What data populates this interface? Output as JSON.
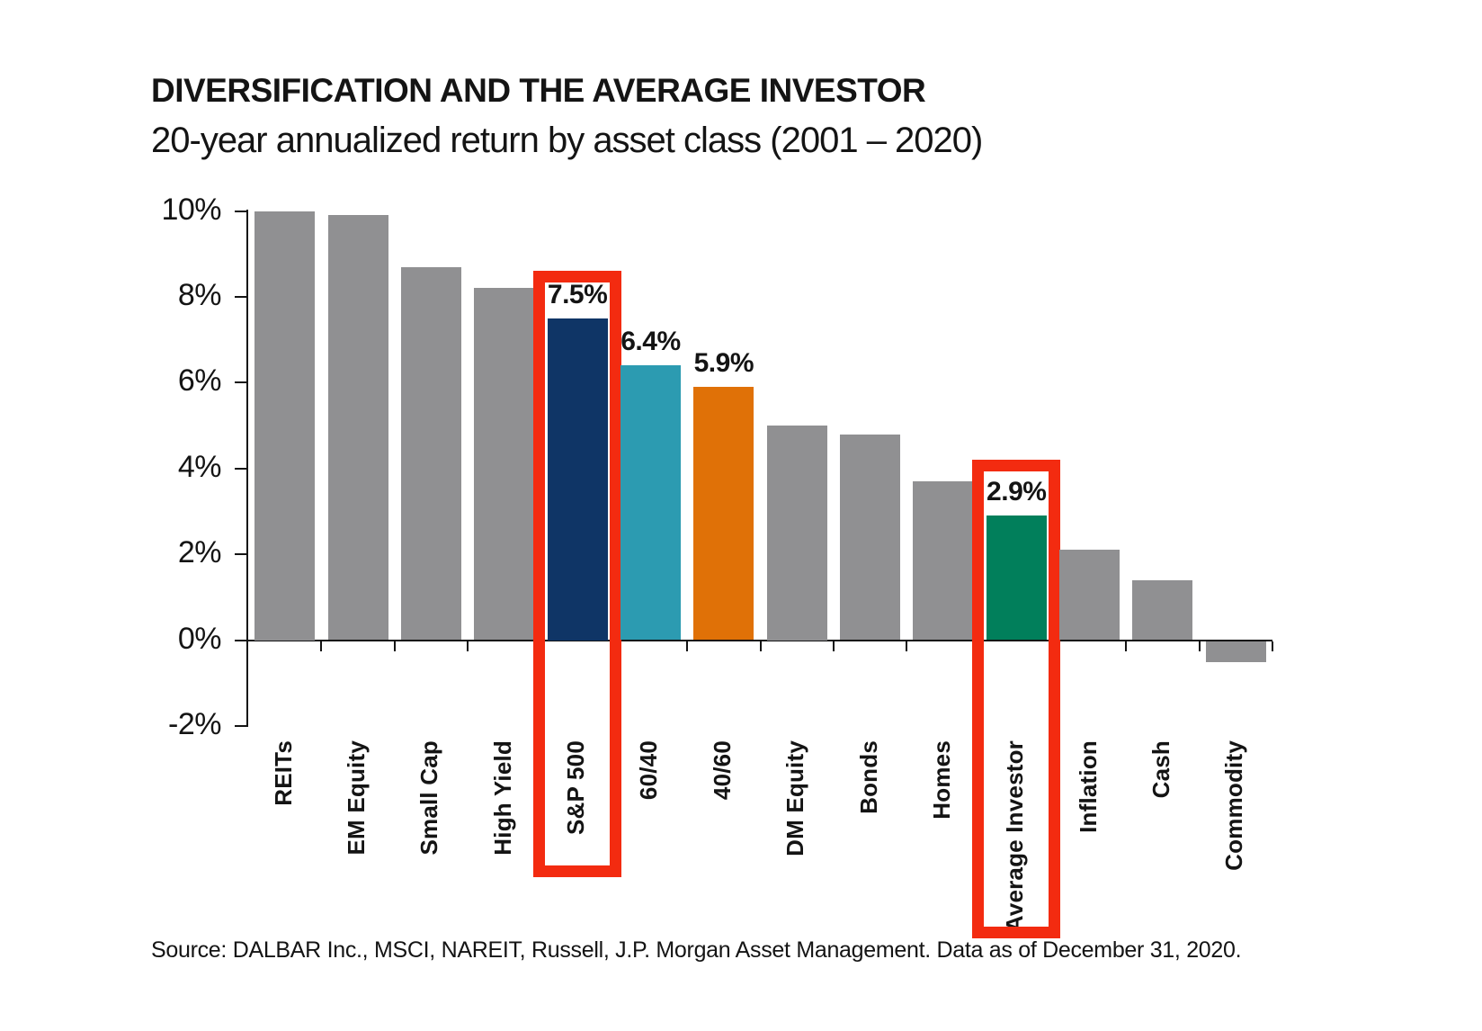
{
  "header": {
    "title": "DIVERSIFICATION AND THE AVERAGE INVESTOR",
    "subtitle": "20-year annualized return by asset class (2001 – 2020)"
  },
  "source_note": "Source: DALBAR Inc., MSCI, NAREIT, Russell, J.P. Morgan Asset Management. Data as of December 31, 2020.",
  "colors": {
    "bar_default": "#909092",
    "sp500_navy": "#0f3566",
    "blend_6040_teal": "#2c9bb1",
    "blend_4060_orange": "#e07107",
    "average_investor_green": "#017f5b",
    "highlight_red": "#f32b10",
    "axis_black": "#141414",
    "text_black": "#141414"
  },
  "chart_data": {
    "type": "bar",
    "title": "DIVERSIFICATION AND THE AVERAGE INVESTOR",
    "subtitle": "20-year annualized return by asset class (2001 – 2020)",
    "unit": "percent",
    "ylim": [
      -2,
      10
    ],
    "grid": false,
    "legend": null,
    "y_ticks": [
      {
        "label": "10%",
        "value": 10
      },
      {
        "label": "8%",
        "value": 8
      },
      {
        "label": "6%",
        "value": 6
      },
      {
        "label": "4%",
        "value": 4
      },
      {
        "label": "2%",
        "value": 2
      },
      {
        "label": "0%",
        "value": 0
      },
      {
        "label": "-2%",
        "value": -2
      }
    ],
    "bars": [
      {
        "label": "REITs",
        "value": 10.0,
        "color_key": "bar_default"
      },
      {
        "label": "EM Equity",
        "value": 9.9,
        "color_key": "bar_default"
      },
      {
        "label": "Small Cap",
        "value": 8.7,
        "color_key": "bar_default"
      },
      {
        "label": "High Yield",
        "value": 8.2,
        "color_key": "bar_default"
      },
      {
        "label": "S&P 500",
        "value": 7.5,
        "color_key": "sp500_navy",
        "value_label": "7.5%",
        "highlighted": true
      },
      {
        "label": "60/40",
        "value": 6.4,
        "color_key": "blend_6040_teal",
        "value_label": "6.4%"
      },
      {
        "label": "40/60",
        "value": 5.9,
        "color_key": "blend_4060_orange",
        "value_label": "5.9%"
      },
      {
        "label": "DM Equity",
        "value": 5.0,
        "color_key": "bar_default"
      },
      {
        "label": "Bonds",
        "value": 4.8,
        "color_key": "bar_default"
      },
      {
        "label": "Homes",
        "value": 3.7,
        "color_key": "bar_default"
      },
      {
        "label": "Average Investor",
        "value": 2.9,
        "color_key": "average_investor_green",
        "value_label": "2.9%",
        "highlighted": true
      },
      {
        "label": "Inflation",
        "value": 2.1,
        "color_key": "bar_default"
      },
      {
        "label": "Cash",
        "value": 1.4,
        "color_key": "bar_default"
      },
      {
        "label": "Commodity",
        "value": -0.5,
        "color_key": "bar_default"
      }
    ]
  }
}
